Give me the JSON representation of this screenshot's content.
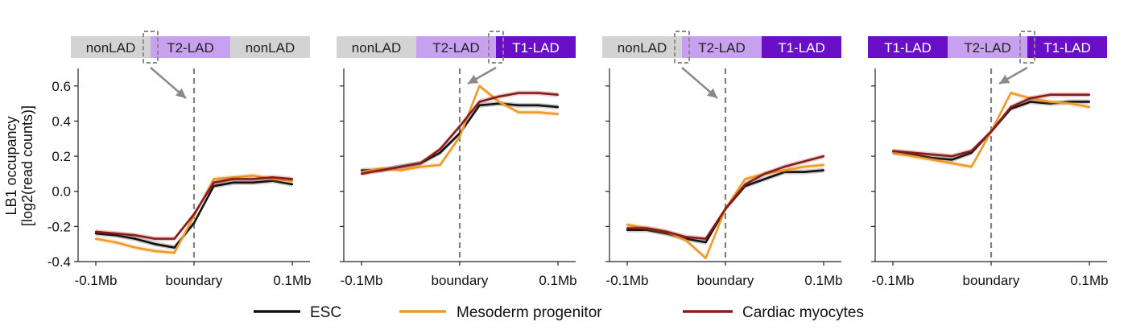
{
  "chart_data": {
    "type": "line",
    "ylabel_line1": "LB1 occupancy",
    "ylabel_line2": "[log2(read counts)]",
    "ylim": [
      -0.4,
      0.7
    ],
    "y_ticks": [
      -0.4,
      -0.2,
      0.0,
      0.2,
      0.4,
      0.6
    ],
    "y_tick_labels": [
      "-0.4",
      "-0.2",
      "0.0",
      "0.2",
      "0.4",
      "0.6"
    ],
    "x_tick_labels": [
      "-0.1Mb",
      "boundary",
      "0.1Mb"
    ],
    "x": [
      0,
      1,
      2,
      3,
      4,
      5,
      6,
      7,
      8,
      9,
      10
    ],
    "colors": {
      "nonLAD": "#d3d3d3",
      "T2-LAD": "#c7a0f0",
      "T1-LAD": "#6a0fc8",
      "ESC": "#111111",
      "Mesoderm progenitor": "#ee9a28",
      "Cardiac myocytes": "#8b1a1a",
      "boundary_line": "#808080",
      "arrow": "#8a8a8a"
    },
    "series_names": [
      "ESC",
      "Mesoderm progenitor",
      "Cardiac myocytes"
    ],
    "panels": [
      {
        "segments": [
          "nonLAD",
          "T2-LAD",
          "nonLAD"
        ],
        "series": [
          {
            "name": "ESC",
            "values": [
              -0.24,
              -0.25,
              -0.27,
              -0.3,
              -0.32,
              -0.18,
              0.03,
              0.05,
              0.05,
              0.06,
              0.04
            ]
          },
          {
            "name": "Mesoderm progenitor",
            "values": [
              -0.27,
              -0.29,
              -0.32,
              -0.34,
              -0.35,
              -0.14,
              0.07,
              0.08,
              0.09,
              0.07,
              0.06
            ]
          },
          {
            "name": "Cardiac myocytes",
            "values": [
              -0.23,
              -0.24,
              -0.25,
              -0.27,
              -0.27,
              -0.13,
              0.05,
              0.07,
              0.07,
              0.08,
              0.07
            ]
          }
        ]
      },
      {
        "segments": [
          "nonLAD",
          "T2-LAD",
          "T1-LAD"
        ],
        "series": [
          {
            "name": "ESC",
            "values": [
              0.12,
              0.12,
              0.14,
              0.16,
              0.22,
              0.33,
              0.49,
              0.5,
              0.49,
              0.49,
              0.48
            ]
          },
          {
            "name": "Mesoderm progenitor",
            "values": [
              0.11,
              0.13,
              0.12,
              0.14,
              0.15,
              0.31,
              0.6,
              0.51,
              0.45,
              0.45,
              0.44
            ]
          },
          {
            "name": "Cardiac myocytes",
            "values": [
              0.1,
              0.12,
              0.14,
              0.16,
              0.24,
              0.37,
              0.51,
              0.54,
              0.56,
              0.56,
              0.55
            ]
          }
        ]
      },
      {
        "segments": [
          "nonLAD",
          "T2-LAD",
          "T1-LAD"
        ],
        "series": [
          {
            "name": "ESC",
            "values": [
              -0.22,
              -0.22,
              -0.24,
              -0.27,
              -0.29,
              -0.1,
              0.03,
              0.07,
              0.11,
              0.11,
              0.12
            ]
          },
          {
            "name": "Mesoderm progenitor",
            "values": [
              -0.19,
              -0.21,
              -0.23,
              -0.28,
              -0.38,
              -0.1,
              0.07,
              0.1,
              0.12,
              0.14,
              0.15
            ]
          },
          {
            "name": "Cardiac myocytes",
            "values": [
              -0.21,
              -0.21,
              -0.23,
              -0.26,
              -0.27,
              -0.1,
              0.04,
              0.1,
              0.14,
              0.17,
              0.2
            ]
          }
        ]
      },
      {
        "segments": [
          "T1-LAD",
          "T2-LAD",
          "T1-LAD"
        ],
        "series": [
          {
            "name": "ESC",
            "values": [
              0.22,
              0.21,
              0.19,
              0.18,
              0.22,
              0.34,
              0.47,
              0.51,
              0.5,
              0.51,
              0.51
            ]
          },
          {
            "name": "Mesoderm progenitor",
            "values": [
              0.22,
              0.2,
              0.18,
              0.16,
              0.14,
              0.34,
              0.56,
              0.53,
              0.51,
              0.5,
              0.48
            ]
          },
          {
            "name": "Cardiac myocytes",
            "values": [
              0.23,
              0.22,
              0.21,
              0.2,
              0.23,
              0.34,
              0.48,
              0.53,
              0.55,
              0.55,
              0.55
            ]
          }
        ]
      }
    ]
  }
}
